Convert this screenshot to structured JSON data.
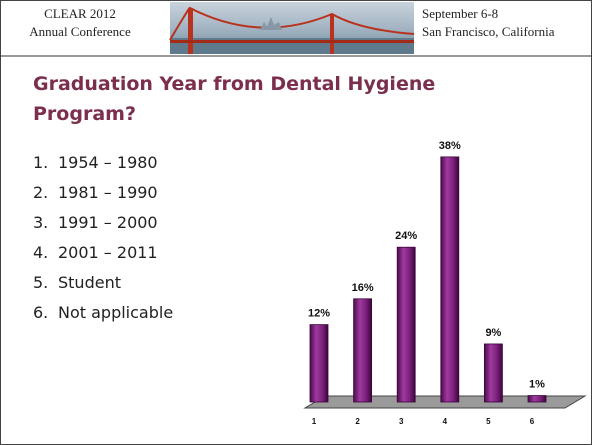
{
  "header": {
    "left": [
      "CLEAR 2012",
      "Annual Conference"
    ],
    "right": [
      "September 6-8",
      "San Francisco, California"
    ]
  },
  "title": [
    "Graduation Year from Dental Hygiene",
    "Program?"
  ],
  "list": [
    {
      "number": "1.",
      "text": "1954 – 1980"
    },
    {
      "number": "2.",
      "text": "1981 – 1990"
    },
    {
      "number": "3.",
      "text": "1991 – 2000"
    },
    {
      "number": "4.",
      "text": "2001 – 2011"
    },
    {
      "number": "5.",
      "text": "Student"
    },
    {
      "number": "6.",
      "text": "Not applicable"
    }
  ],
  "chart_data": {
    "type": "bar",
    "categories": [
      "1",
      "2",
      "3",
      "4",
      "5",
      "6"
    ],
    "values": [
      12,
      16,
      24,
      38,
      9,
      1
    ],
    "value_labels": [
      "12%",
      "16%",
      "24%",
      "38%",
      "9%",
      "1%"
    ],
    "color": "#7b1f7b"
  }
}
